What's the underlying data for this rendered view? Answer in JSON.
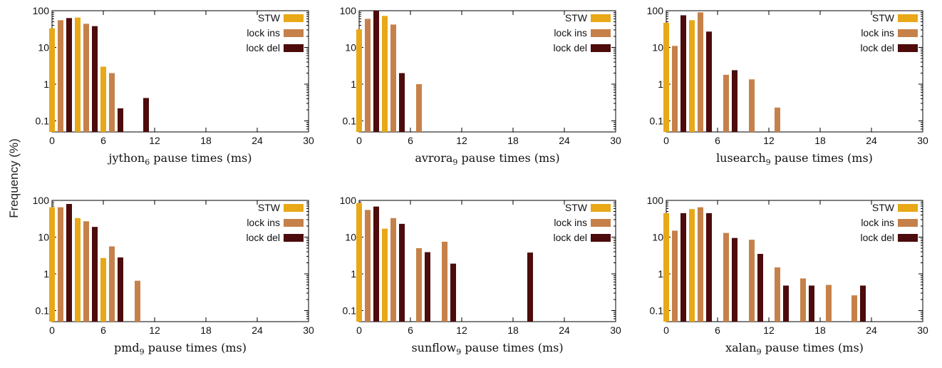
{
  "figure": {
    "ylabel": "Frequency (%)",
    "unit_suffix": "pause times (ms)"
  },
  "colors": {
    "STW": "#e8a817",
    "lock ins": "#c6814a",
    "lock del": "#4d0b0b"
  },
  "chart_data": [
    {
      "type": "bar",
      "benchmark": "jython",
      "subscript": "6",
      "xlabel": "pause times (ms)",
      "ylabel": "Frequency (%)",
      "yscale": "log",
      "xlim": [
        0,
        30
      ],
      "ylim": [
        0.05,
        100
      ],
      "xticks": [
        0,
        6,
        12,
        18,
        24,
        30
      ],
      "yticks": [
        "0.1",
        "1",
        "10",
        "100"
      ],
      "legend_position": "top-right",
      "series": [
        {
          "name": "STW",
          "points": [
            [
              1,
              33
            ],
            [
              4,
              65
            ],
            [
              7,
              3
            ]
          ]
        },
        {
          "name": "lock ins",
          "points": [
            [
              1,
              55
            ],
            [
              4,
              44
            ],
            [
              7,
              2
            ]
          ]
        },
        {
          "name": "lock del",
          "points": [
            [
              1,
              63
            ],
            [
              4,
              38
            ],
            [
              7,
              0.22
            ],
            [
              10,
              0.42
            ]
          ]
        }
      ]
    },
    {
      "type": "bar",
      "benchmark": "avrora",
      "subscript": "9",
      "xlabel": "pause times (ms)",
      "ylabel": "Frequency (%)",
      "yscale": "log",
      "xlim": [
        0,
        30
      ],
      "ylim": [
        0.05,
        100
      ],
      "xticks": [
        0,
        6,
        12,
        18,
        24,
        30
      ],
      "yticks": [
        "0.1",
        "1",
        "10",
        "100"
      ],
      "legend_position": "top-right",
      "series": [
        {
          "name": "STW",
          "points": [
            [
              1,
              31
            ],
            [
              4,
              72
            ]
          ]
        },
        {
          "name": "lock ins",
          "points": [
            [
              1,
              60
            ],
            [
              4,
              42
            ],
            [
              7,
              1
            ]
          ]
        },
        {
          "name": "lock del",
          "points": [
            [
              1,
              100
            ],
            [
              4,
              2
            ]
          ]
        }
      ]
    },
    {
      "type": "bar",
      "benchmark": "lusearch",
      "subscript": "9",
      "xlabel": "pause times (ms)",
      "ylabel": "Frequency (%)",
      "yscale": "log",
      "xlim": [
        0,
        30
      ],
      "ylim": [
        0.05,
        100
      ],
      "xticks": [
        0,
        6,
        12,
        18,
        24,
        30
      ],
      "yticks": [
        "0.1",
        "1",
        "10",
        "100"
      ],
      "legend_position": "top-right",
      "series": [
        {
          "name": "STW",
          "points": [
            [
              1,
              47
            ],
            [
              4,
              55
            ]
          ]
        },
        {
          "name": "lock ins",
          "points": [
            [
              1,
              11
            ],
            [
              4,
              90
            ],
            [
              7,
              1.8
            ],
            [
              10,
              1.35
            ],
            [
              13,
              0.23
            ]
          ]
        },
        {
          "name": "lock del",
          "points": [
            [
              1,
              75
            ],
            [
              4,
              27
            ],
            [
              7,
              2.4
            ]
          ]
        }
      ]
    },
    {
      "type": "bar",
      "benchmark": "pmd",
      "subscript": "9",
      "xlabel": "pause times (ms)",
      "ylabel": "Frequency (%)",
      "yscale": "log",
      "xlim": [
        0,
        30
      ],
      "ylim": [
        0.05,
        100
      ],
      "xticks": [
        0,
        6,
        12,
        18,
        24,
        30
      ],
      "yticks": [
        "0.1",
        "1",
        "10",
        "100"
      ],
      "legend_position": "top-right",
      "series": [
        {
          "name": "STW",
          "points": [
            [
              1,
              65
            ],
            [
              4,
              33
            ],
            [
              7,
              2.7
            ]
          ]
        },
        {
          "name": "lock ins",
          "points": [
            [
              1,
              65
            ],
            [
              4,
              27
            ],
            [
              7,
              5.6
            ],
            [
              10,
              0.65
            ]
          ]
        },
        {
          "name": "lock del",
          "points": [
            [
              1,
              80
            ],
            [
              4,
              19
            ],
            [
              7,
              2.8
            ]
          ]
        }
      ]
    },
    {
      "type": "bar",
      "benchmark": "sunflow",
      "subscript": "9",
      "xlabel": "pause times (ms)",
      "ylabel": "Frequency (%)",
      "yscale": "log",
      "xlim": [
        0,
        30
      ],
      "ylim": [
        0.05,
        100
      ],
      "xticks": [
        0,
        6,
        12,
        18,
        24,
        30
      ],
      "yticks": [
        "0.1",
        "1",
        "10",
        "100"
      ],
      "legend_position": "top-right",
      "series": [
        {
          "name": "STW",
          "points": [
            [
              1,
              85
            ],
            [
              4,
              17
            ]
          ]
        },
        {
          "name": "lock ins",
          "points": [
            [
              1,
              55
            ],
            [
              4,
              33
            ],
            [
              7,
              5
            ],
            [
              10,
              7.5
            ]
          ]
        },
        {
          "name": "lock del",
          "points": [
            [
              1,
              68
            ],
            [
              4,
              23
            ],
            [
              7,
              3.9
            ],
            [
              10,
              1.9
            ],
            [
              19,
              3.8
            ]
          ]
        }
      ]
    },
    {
      "type": "bar",
      "benchmark": "xalan",
      "subscript": "9",
      "xlabel": "pause times (ms)",
      "ylabel": "Frequency (%)",
      "yscale": "log",
      "xlim": [
        0,
        30
      ],
      "ylim": [
        0.05,
        100
      ],
      "xticks": [
        0,
        6,
        12,
        18,
        24,
        30
      ],
      "yticks": [
        "0.1",
        "1",
        "10",
        "100"
      ],
      "legend_position": "top-right",
      "series": [
        {
          "name": "STW",
          "points": [
            [
              1,
              45
            ],
            [
              4,
              58
            ]
          ]
        },
        {
          "name": "lock ins",
          "points": [
            [
              1,
              15
            ],
            [
              4,
              65
            ],
            [
              7,
              13
            ],
            [
              10,
              8.5
            ],
            [
              13,
              1.5
            ],
            [
              16,
              0.75
            ],
            [
              19,
              0.5
            ],
            [
              22,
              0.26
            ]
          ]
        },
        {
          "name": "lock del",
          "points": [
            [
              1,
              45
            ],
            [
              4,
              45
            ],
            [
              7,
              9.5
            ],
            [
              10,
              3.5
            ],
            [
              13,
              0.48
            ],
            [
              16,
              0.48
            ],
            [
              22,
              0.48
            ]
          ]
        }
      ]
    }
  ]
}
